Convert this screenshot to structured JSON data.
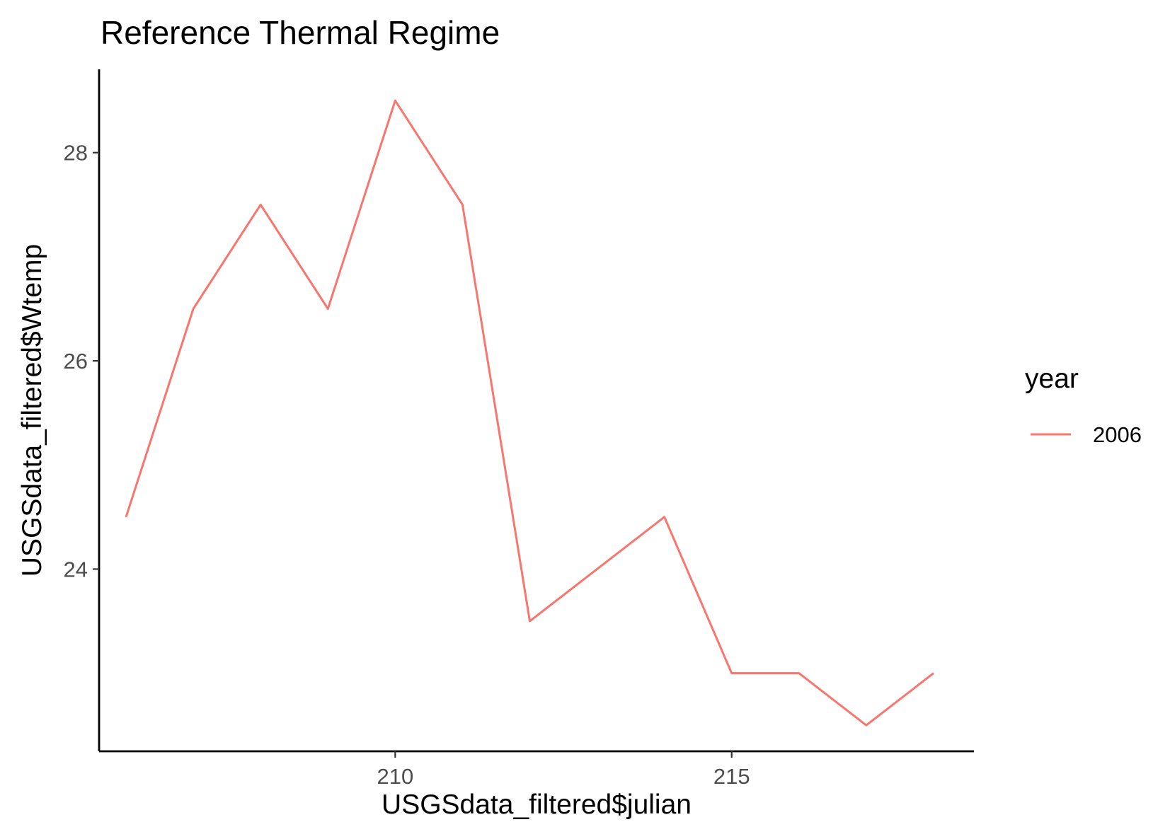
{
  "chart_data": {
    "type": "line",
    "title": "Reference Thermal Regime",
    "xlabel": "USGSdata_filtered$julian",
    "ylabel": "USGSdata_filtered$Wtemp",
    "xlim": [
      205.6,
      218.6
    ],
    "ylim": [
      22.25,
      28.8
    ],
    "x_ticks": [
      210,
      215
    ],
    "y_ticks": [
      24,
      26,
      28
    ],
    "grid": false,
    "legend": {
      "title": "year",
      "position": "right"
    },
    "series": [
      {
        "name": "2006",
        "color": "#F8766D",
        "x": [
          206,
          207,
          208,
          209,
          210,
          211,
          212,
          213,
          214,
          215,
          216,
          217,
          218
        ],
        "y": [
          24.5,
          26.5,
          27.5,
          26.5,
          28.5,
          27.5,
          23.5,
          24.0,
          24.5,
          23.0,
          23.0,
          22.5,
          23.0
        ]
      }
    ]
  }
}
